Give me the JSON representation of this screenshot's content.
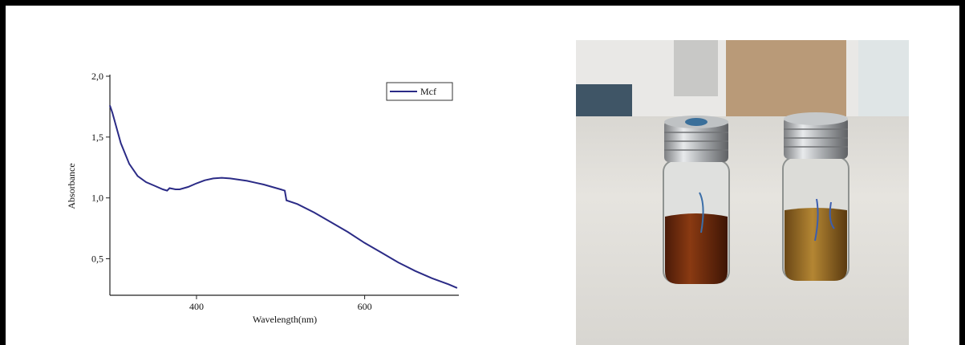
{
  "chart_data": {
    "type": "line",
    "x_label": "Wavelength(nm)",
    "y_label": "Absorbance",
    "x": [
      297,
      300,
      310,
      320,
      330,
      340,
      350,
      360,
      365,
      368,
      375,
      380,
      390,
      400,
      410,
      420,
      430,
      440,
      450,
      460,
      470,
      480,
      490,
      500,
      505,
      507,
      520,
      540,
      560,
      580,
      600,
      620,
      640,
      660,
      680,
      700,
      710
    ],
    "series": [
      {
        "name": "Mcf",
        "color": "#2b2b86",
        "values": [
          1.76,
          1.7,
          1.45,
          1.28,
          1.18,
          1.13,
          1.1,
          1.07,
          1.06,
          1.08,
          1.07,
          1.07,
          1.09,
          1.12,
          1.145,
          1.16,
          1.165,
          1.16,
          1.15,
          1.14,
          1.125,
          1.11,
          1.09,
          1.07,
          1.06,
          0.98,
          0.95,
          0.88,
          0.8,
          0.72,
          0.63,
          0.55,
          0.47,
          0.4,
          0.34,
          0.29,
          0.26
        ]
      }
    ],
    "xlim": [
      297,
      712
    ],
    "ylim": [
      0.2,
      2.0
    ],
    "xticks": [
      400,
      600
    ],
    "yticks": [
      {
        "value": 2.0,
        "label": "2,0"
      },
      {
        "value": 1.5,
        "label": "1,5"
      },
      {
        "value": 1.0,
        "label": "1,0"
      },
      {
        "value": 0.5,
        "label": "0,5"
      }
    ],
    "legend": "upper right"
  }
}
